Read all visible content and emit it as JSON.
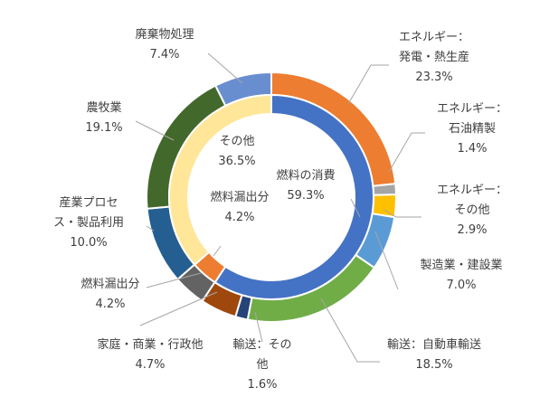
{
  "chart_data": {
    "type": "pie",
    "subtype": "nested-donut",
    "title": "",
    "series": [
      {
        "ring": "outer",
        "slices": [
          {
            "label": [
              "エネルギー：",
              "発電・熱生産"
            ],
            "value_label": "23.3%",
            "value": 23.3,
            "color": "#ED7D31"
          },
          {
            "label": [
              "エネルギー：",
              "石油精製"
            ],
            "value_label": "1.4%",
            "value": 1.4,
            "color": "#A5A5A5"
          },
          {
            "label": [
              "エネルギー：",
              "その他"
            ],
            "value_label": "2.9%",
            "value": 2.9,
            "color": "#FFC000"
          },
          {
            "label": [
              "製造業・建設業"
            ],
            "value_label": "7.0%",
            "value": 7.0,
            "color": "#5B9BD5"
          },
          {
            "label": [
              "輸送：自動車輸送"
            ],
            "value_label": "18.5%",
            "value": 18.5,
            "color": "#70AD47"
          },
          {
            "label": [
              "輸送：その",
              "他"
            ],
            "value_label": "1.6%",
            "value": 1.6,
            "color": "#264478"
          },
          {
            "label": [
              "家庭・商業・行政他"
            ],
            "value_label": "4.7%",
            "value": 4.7,
            "color": "#9E480E"
          },
          {
            "label": [
              "燃料漏出分"
            ],
            "value_label": "4.2%",
            "value": 4.2,
            "color": "#636363"
          },
          {
            "label": [
              "産業プロセ",
              "ス・製品利用"
            ],
            "value_label": "10.0%",
            "value": 10.0,
            "color": "#255E91"
          },
          {
            "label": [
              "農牧業"
            ],
            "value_label": "19.1%",
            "value": 19.1,
            "color": "#43682B"
          },
          {
            "label": [
              "廃棄物処理"
            ],
            "value_label": "7.4%",
            "value": 7.4,
            "color": "#698ED0"
          }
        ]
      },
      {
        "ring": "inner",
        "slices": [
          {
            "label": [
              "燃料の消費"
            ],
            "value_label": "59.3%",
            "value": 59.3,
            "color": "#4472C4"
          },
          {
            "label": [
              "燃料漏出分"
            ],
            "value_label": "4.2%",
            "value": 4.2,
            "color": "#ED7D31"
          },
          {
            "label": [
              "その他"
            ],
            "value_label": "36.5%",
            "value": 36.5,
            "color": "#FFE699"
          }
        ]
      }
    ]
  }
}
